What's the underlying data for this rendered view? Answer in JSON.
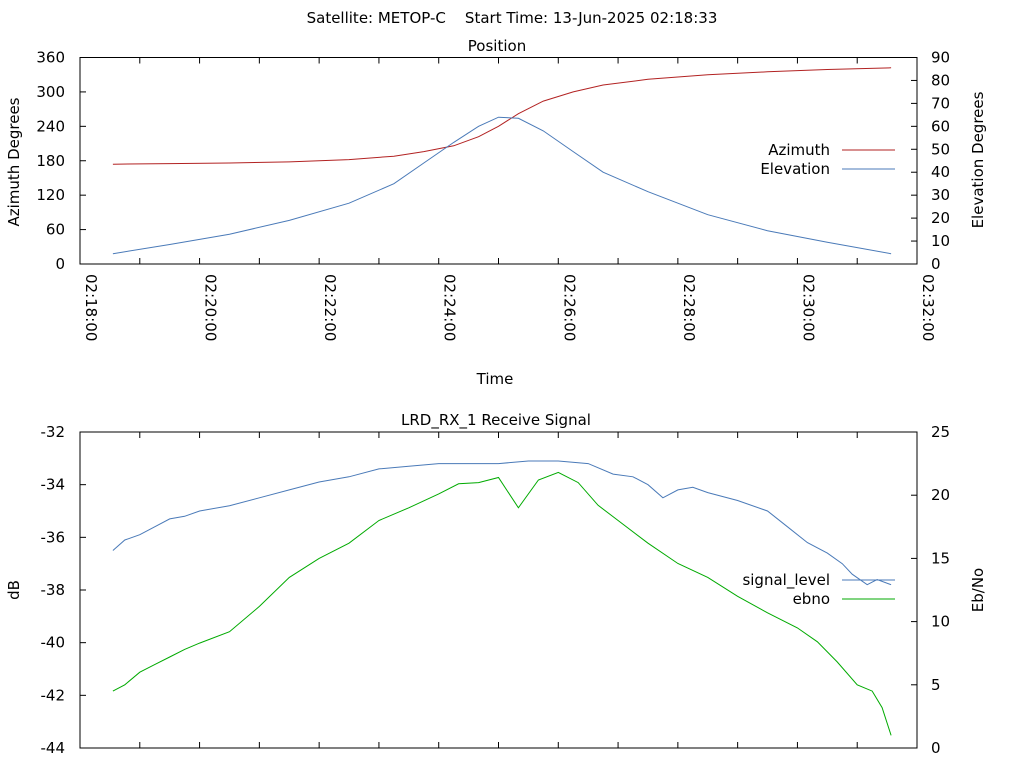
{
  "header": {
    "title": "Satellite: METOP-C    Start Time: 13-Jun-2025 02:18:33"
  },
  "chart_data": [
    {
      "type": "line",
      "title": "Position",
      "xlabel": "Time",
      "ylabel": "Azimuth Degrees",
      "y2label": "Elevation Degrees",
      "xlim": [
        "02:18:00",
        "02:32:00"
      ],
      "ylim": [
        0,
        360
      ],
      "y2lim": [
        0,
        90
      ],
      "xticks": [
        "02:18:00",
        "02:20:00",
        "02:22:00",
        "02:24:00",
        "02:26:00",
        "02:28:00",
        "02:30:00",
        "02:32:00"
      ],
      "yticks": [
        "0",
        "60",
        "120",
        "180",
        "240",
        "300",
        "360"
      ],
      "y2ticks": [
        "0",
        "10",
        "20",
        "30",
        "40",
        "50",
        "60",
        "70",
        "80",
        "90"
      ],
      "grid": false,
      "legend": "right",
      "series": [
        {
          "name": "Azimuth",
          "axis": "left",
          "color": "#b22222",
          "x": [
            "02:18:33",
            "02:19:30",
            "02:20:30",
            "02:21:30",
            "02:22:30",
            "02:23:15",
            "02:23:45",
            "02:24:15",
            "02:24:40",
            "02:25:00",
            "02:25:20",
            "02:25:45",
            "02:26:15",
            "02:26:45",
            "02:27:30",
            "02:28:30",
            "02:29:30",
            "02:30:30",
            "02:31:34"
          ],
          "y": [
            174,
            175,
            176,
            178,
            182,
            188,
            196,
            206,
            222,
            240,
            262,
            284,
            300,
            312,
            322,
            330,
            335,
            339,
            342
          ]
        },
        {
          "name": "Elevation",
          "axis": "right",
          "color": "#4a7ab8",
          "x": [
            "02:18:33",
            "02:19:30",
            "02:20:30",
            "02:21:30",
            "02:22:30",
            "02:23:15",
            "02:23:45",
            "02:24:15",
            "02:24:40",
            "02:25:00",
            "02:25:20",
            "02:25:45",
            "02:26:15",
            "02:26:45",
            "02:27:30",
            "02:28:30",
            "02:29:30",
            "02:30:30",
            "02:31:34"
          ],
          "y": [
            4.5,
            8.5,
            13,
            19,
            26.5,
            35,
            44,
            53,
            60,
            64,
            63.5,
            58,
            49,
            40,
            31.5,
            21.5,
            14.5,
            9.5,
            4.5
          ]
        }
      ]
    },
    {
      "type": "line",
      "title": "LRD_RX_1 Receive Signal",
      "ylabel": "dB",
      "y2label": "Eb/No",
      "xlim": [
        "02:18:00",
        "02:32:00"
      ],
      "ylim": [
        -44,
        -32
      ],
      "y2lim": [
        0,
        25
      ],
      "yticks": [
        "-32",
        "-34",
        "-36",
        "-38",
        "-40",
        "-42",
        "-44"
      ],
      "y2ticks": [
        "0",
        "5",
        "10",
        "15",
        "20",
        "25"
      ],
      "grid": false,
      "legend": "right",
      "series": [
        {
          "name": "signal_level",
          "axis": "left",
          "color": "#4a7ab8",
          "x": [
            "02:18:33",
            "02:18:45",
            "02:19:00",
            "02:19:15",
            "02:19:30",
            "02:19:45",
            "02:20:00",
            "02:20:30",
            "02:21:00",
            "02:21:30",
            "02:22:00",
            "02:22:30",
            "02:23:00",
            "02:23:30",
            "02:24:00",
            "02:24:30",
            "02:25:00",
            "02:25:30",
            "02:26:00",
            "02:26:30",
            "02:26:55",
            "02:27:15",
            "02:27:30",
            "02:27:45",
            "02:28:00",
            "02:28:15",
            "02:28:30",
            "02:29:00",
            "02:29:30",
            "02:29:50",
            "02:30:10",
            "02:30:30",
            "02:30:45",
            "02:30:55",
            "02:31:10",
            "02:31:20",
            "02:31:34"
          ],
          "y": [
            -36.5,
            -36.1,
            -35.9,
            -35.6,
            -35.3,
            -35.2,
            -35.0,
            -34.8,
            -34.5,
            -34.2,
            -33.9,
            -33.7,
            -33.4,
            -33.3,
            -33.2,
            -33.2,
            -33.2,
            -33.1,
            -33.1,
            -33.2,
            -33.6,
            -33.7,
            -34.0,
            -34.5,
            -34.2,
            -34.1,
            -34.3,
            -34.6,
            -35.0,
            -35.6,
            -36.2,
            -36.6,
            -37.0,
            -37.4,
            -37.8,
            -37.6,
            -37.8
          ]
        },
        {
          "name": "ebno",
          "axis": "right",
          "color": "#00aa00",
          "x": [
            "02:18:33",
            "02:18:45",
            "02:19:00",
            "02:19:15",
            "02:19:30",
            "02:19:45",
            "02:20:00",
            "02:20:30",
            "02:21:00",
            "02:21:30",
            "02:22:00",
            "02:22:30",
            "02:23:00",
            "02:23:30",
            "02:24:00",
            "02:24:20",
            "02:24:40",
            "02:25:00",
            "02:25:20",
            "02:25:40",
            "02:26:00",
            "02:26:20",
            "02:26:40",
            "02:27:00",
            "02:27:30",
            "02:28:00",
            "02:28:30",
            "02:29:00",
            "02:29:30",
            "02:30:00",
            "02:30:20",
            "02:30:40",
            "02:31:00",
            "02:31:15",
            "02:31:25",
            "02:31:34"
          ],
          "y": [
            4.5,
            5.0,
            6.0,
            6.6,
            7.2,
            7.8,
            8.3,
            9.2,
            11.2,
            13.5,
            15.0,
            16.2,
            18.0,
            19.0,
            20.1,
            20.9,
            21.0,
            21.4,
            19.0,
            21.2,
            21.8,
            21.0,
            19.2,
            18.0,
            16.2,
            14.6,
            13.5,
            12.0,
            10.7,
            9.5,
            8.4,
            6.8,
            5.0,
            4.5,
            3.2,
            1.0
          ]
        }
      ]
    }
  ]
}
